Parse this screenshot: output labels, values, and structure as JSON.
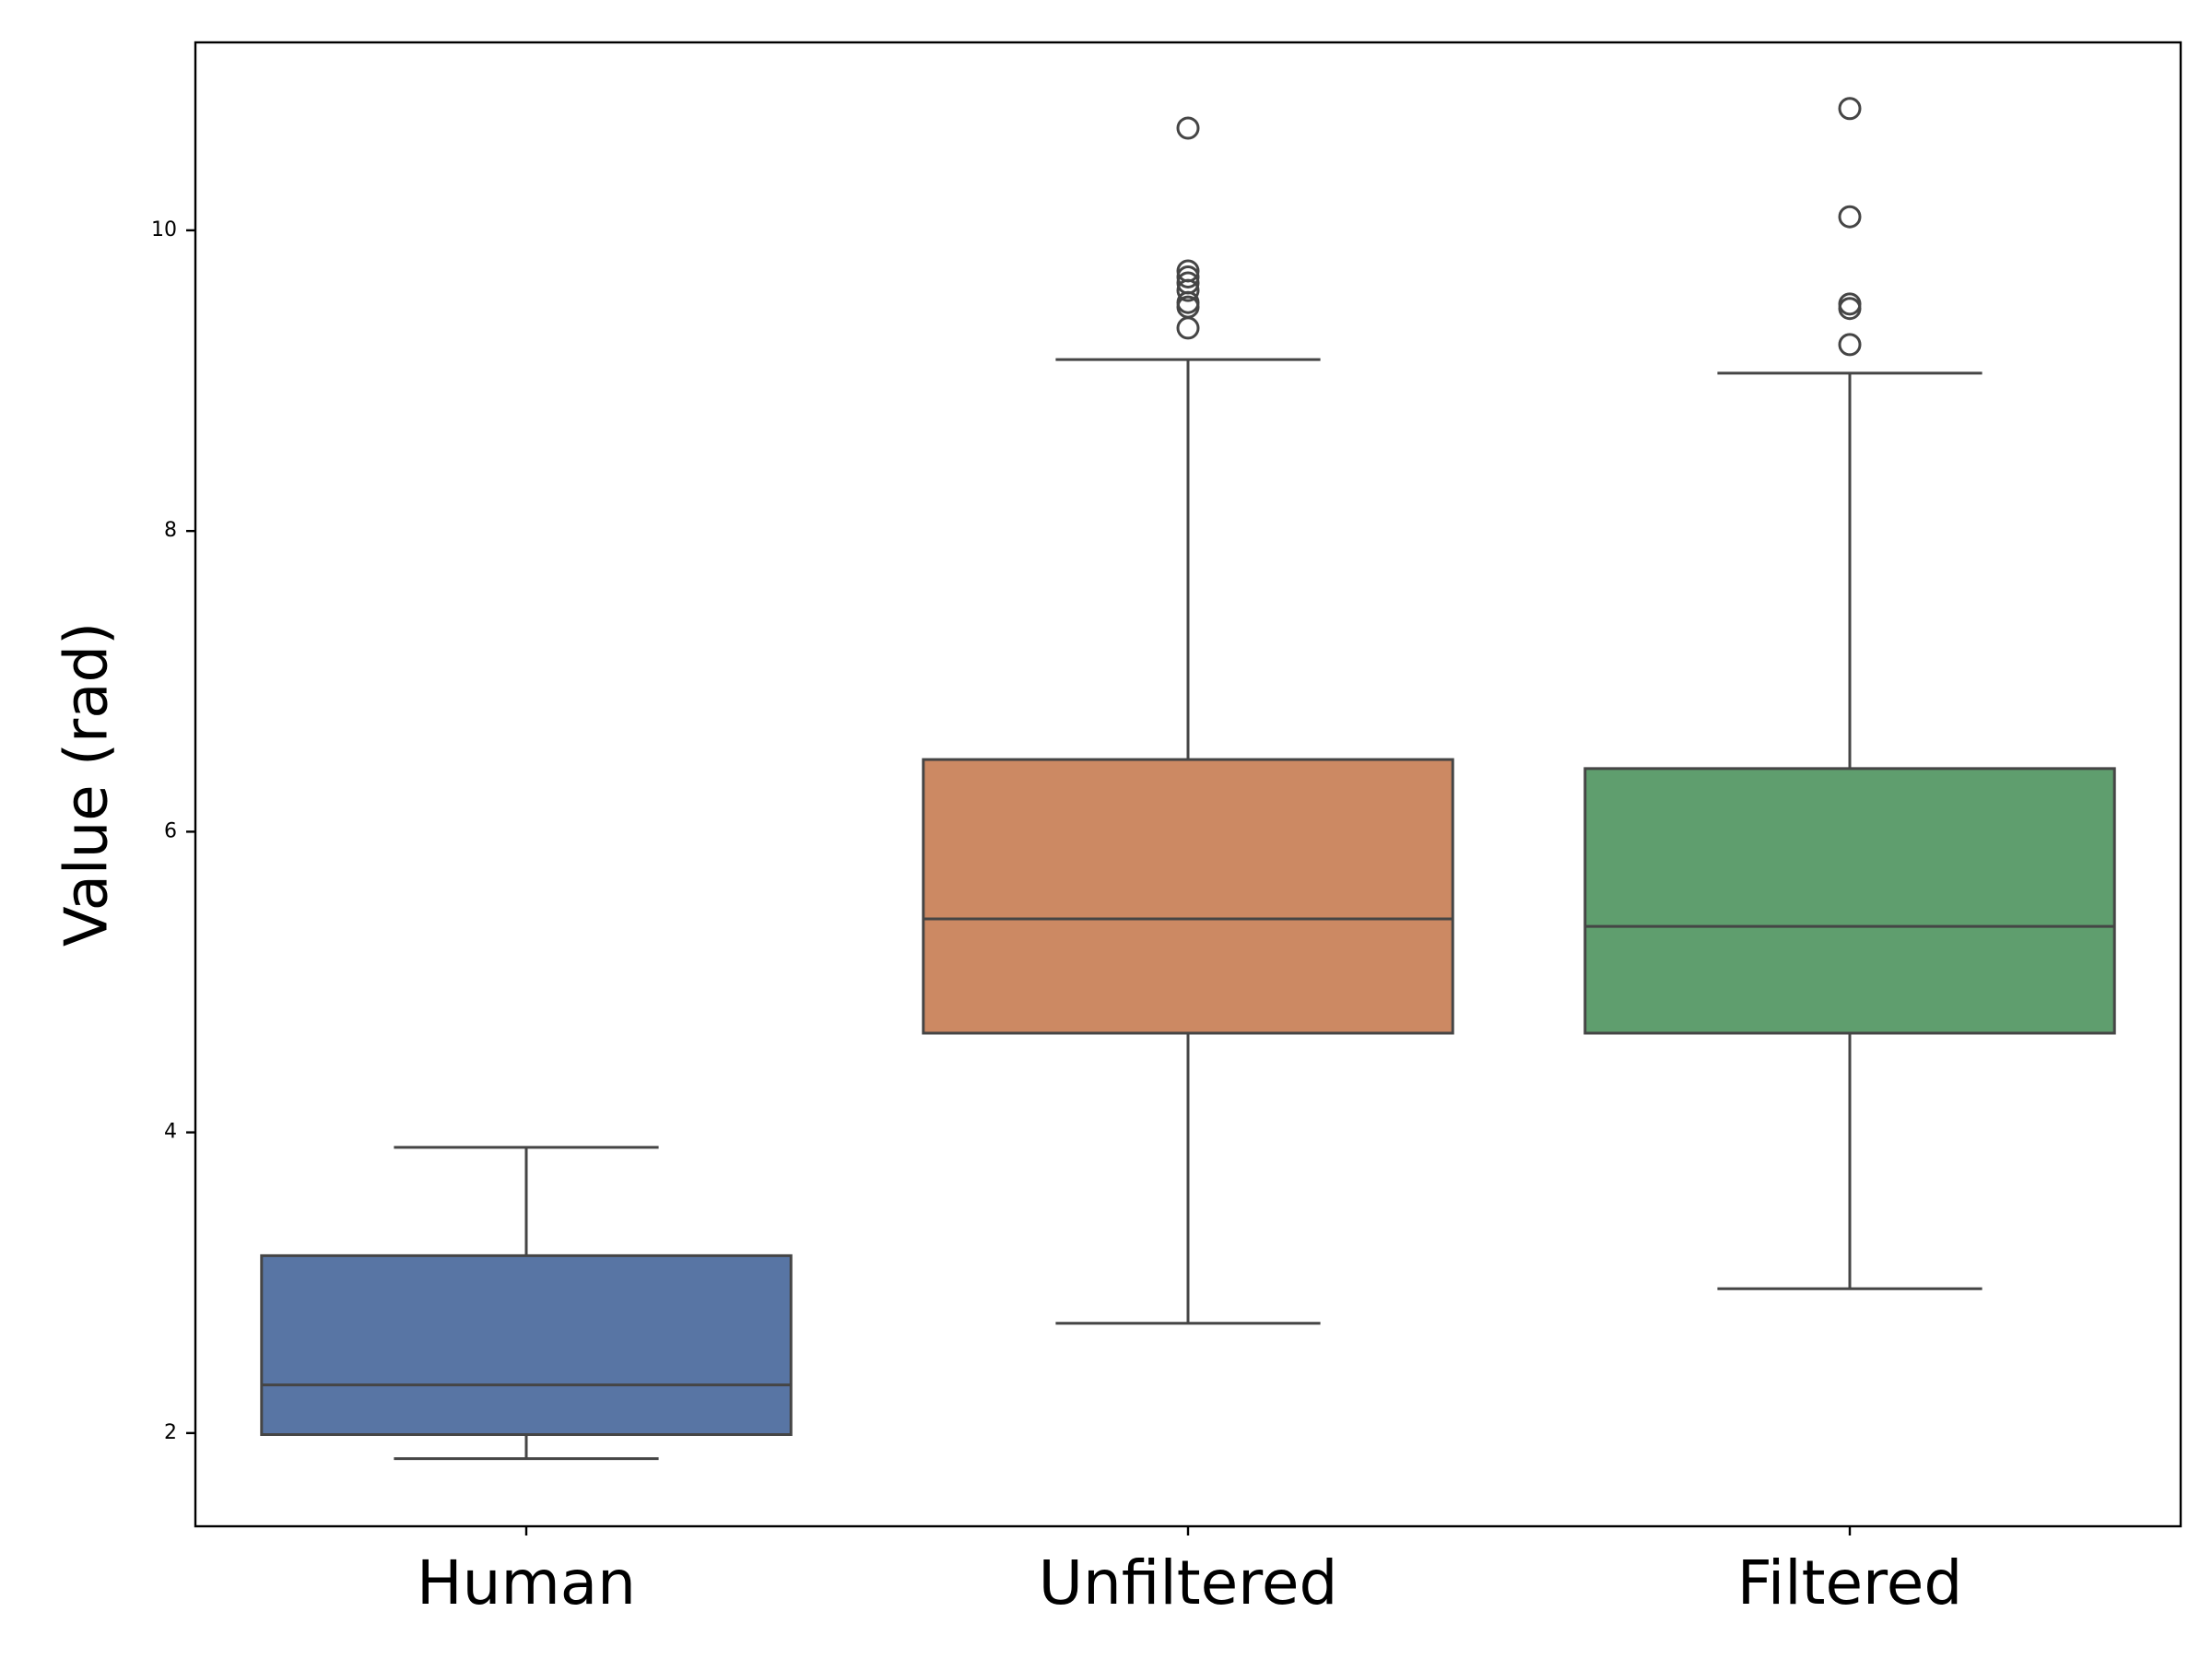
{
  "chart_data": {
    "type": "box",
    "ylabel": "Value (rad)",
    "ylim": [
      1.38,
      11.25
    ],
    "yticks": [
      "2",
      "4",
      "6",
      "8",
      "10"
    ],
    "categories": [
      "Human",
      "Unfiltered",
      "Filtered"
    ],
    "series": [
      {
        "category": "Human",
        "color": "#5875a4",
        "whisker_low": 1.83,
        "q1": 1.99,
        "median": 2.32,
        "q3": 3.18,
        "whisker_high": 3.9,
        "outliers": []
      },
      {
        "category": "Unfiltered",
        "color": "#cc8963",
        "whisker_low": 2.73,
        "q1": 4.66,
        "median": 5.42,
        "q3": 6.48,
        "whisker_high": 9.14,
        "outliers": [
          10.68,
          9.73,
          9.69,
          9.65,
          9.6,
          9.52,
          9.49,
          9.35
        ]
      },
      {
        "category": "Filtered",
        "color": "#5f9e6e",
        "whisker_low": 2.96,
        "q1": 4.66,
        "median": 5.37,
        "q3": 6.42,
        "whisker_high": 9.05,
        "outliers": [
          10.81,
          10.09,
          9.51,
          9.48,
          9.24
        ]
      }
    ],
    "grid": false,
    "legend": "none"
  }
}
